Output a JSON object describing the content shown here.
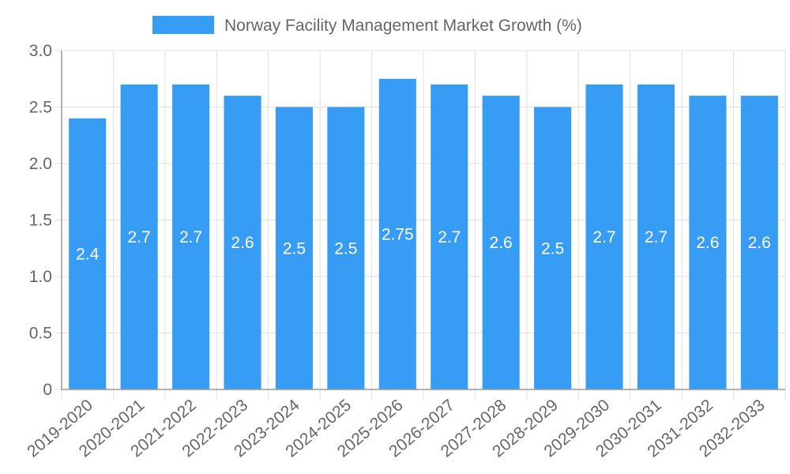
{
  "chart_data": {
    "type": "bar",
    "categories": [
      "2019-2020",
      "2020-2021",
      "2021-2022",
      "2022-2023",
      "2023-2024",
      "2024-2025",
      "2025-2026",
      "2026-2027",
      "2027-2028",
      "2028-2029",
      "2029-2030",
      "2030-2031",
      "2031-2032",
      "2032-2033"
    ],
    "series": [
      {
        "name": "Norway Facility Management Market Growth (%)",
        "values": [
          2.4,
          2.7,
          2.7,
          2.6,
          2.5,
          2.5,
          2.75,
          2.7,
          2.6,
          2.5,
          2.7,
          2.7,
          2.6,
          2.6
        ],
        "labels": [
          "2.4",
          "2.7",
          "2.7",
          "2.6",
          "2.5",
          "2.5",
          "2.75",
          "2.7",
          "2.6",
          "2.5",
          "2.7",
          "2.7",
          "2.6",
          "2.6"
        ],
        "color": "#379cf3"
      }
    ],
    "ylim": [
      0,
      3.0
    ],
    "y_ticks": [
      0,
      0.5,
      1.0,
      1.5,
      2.0,
      2.5,
      3.0
    ],
    "y_tick_labels": [
      "0",
      "0.5",
      "1.0",
      "1.5",
      "2.0",
      "2.5",
      "3.0"
    ],
    "grid": true,
    "legend": "top-center",
    "grid_color": "#e0e0e0",
    "axis_color": "#999999"
  }
}
